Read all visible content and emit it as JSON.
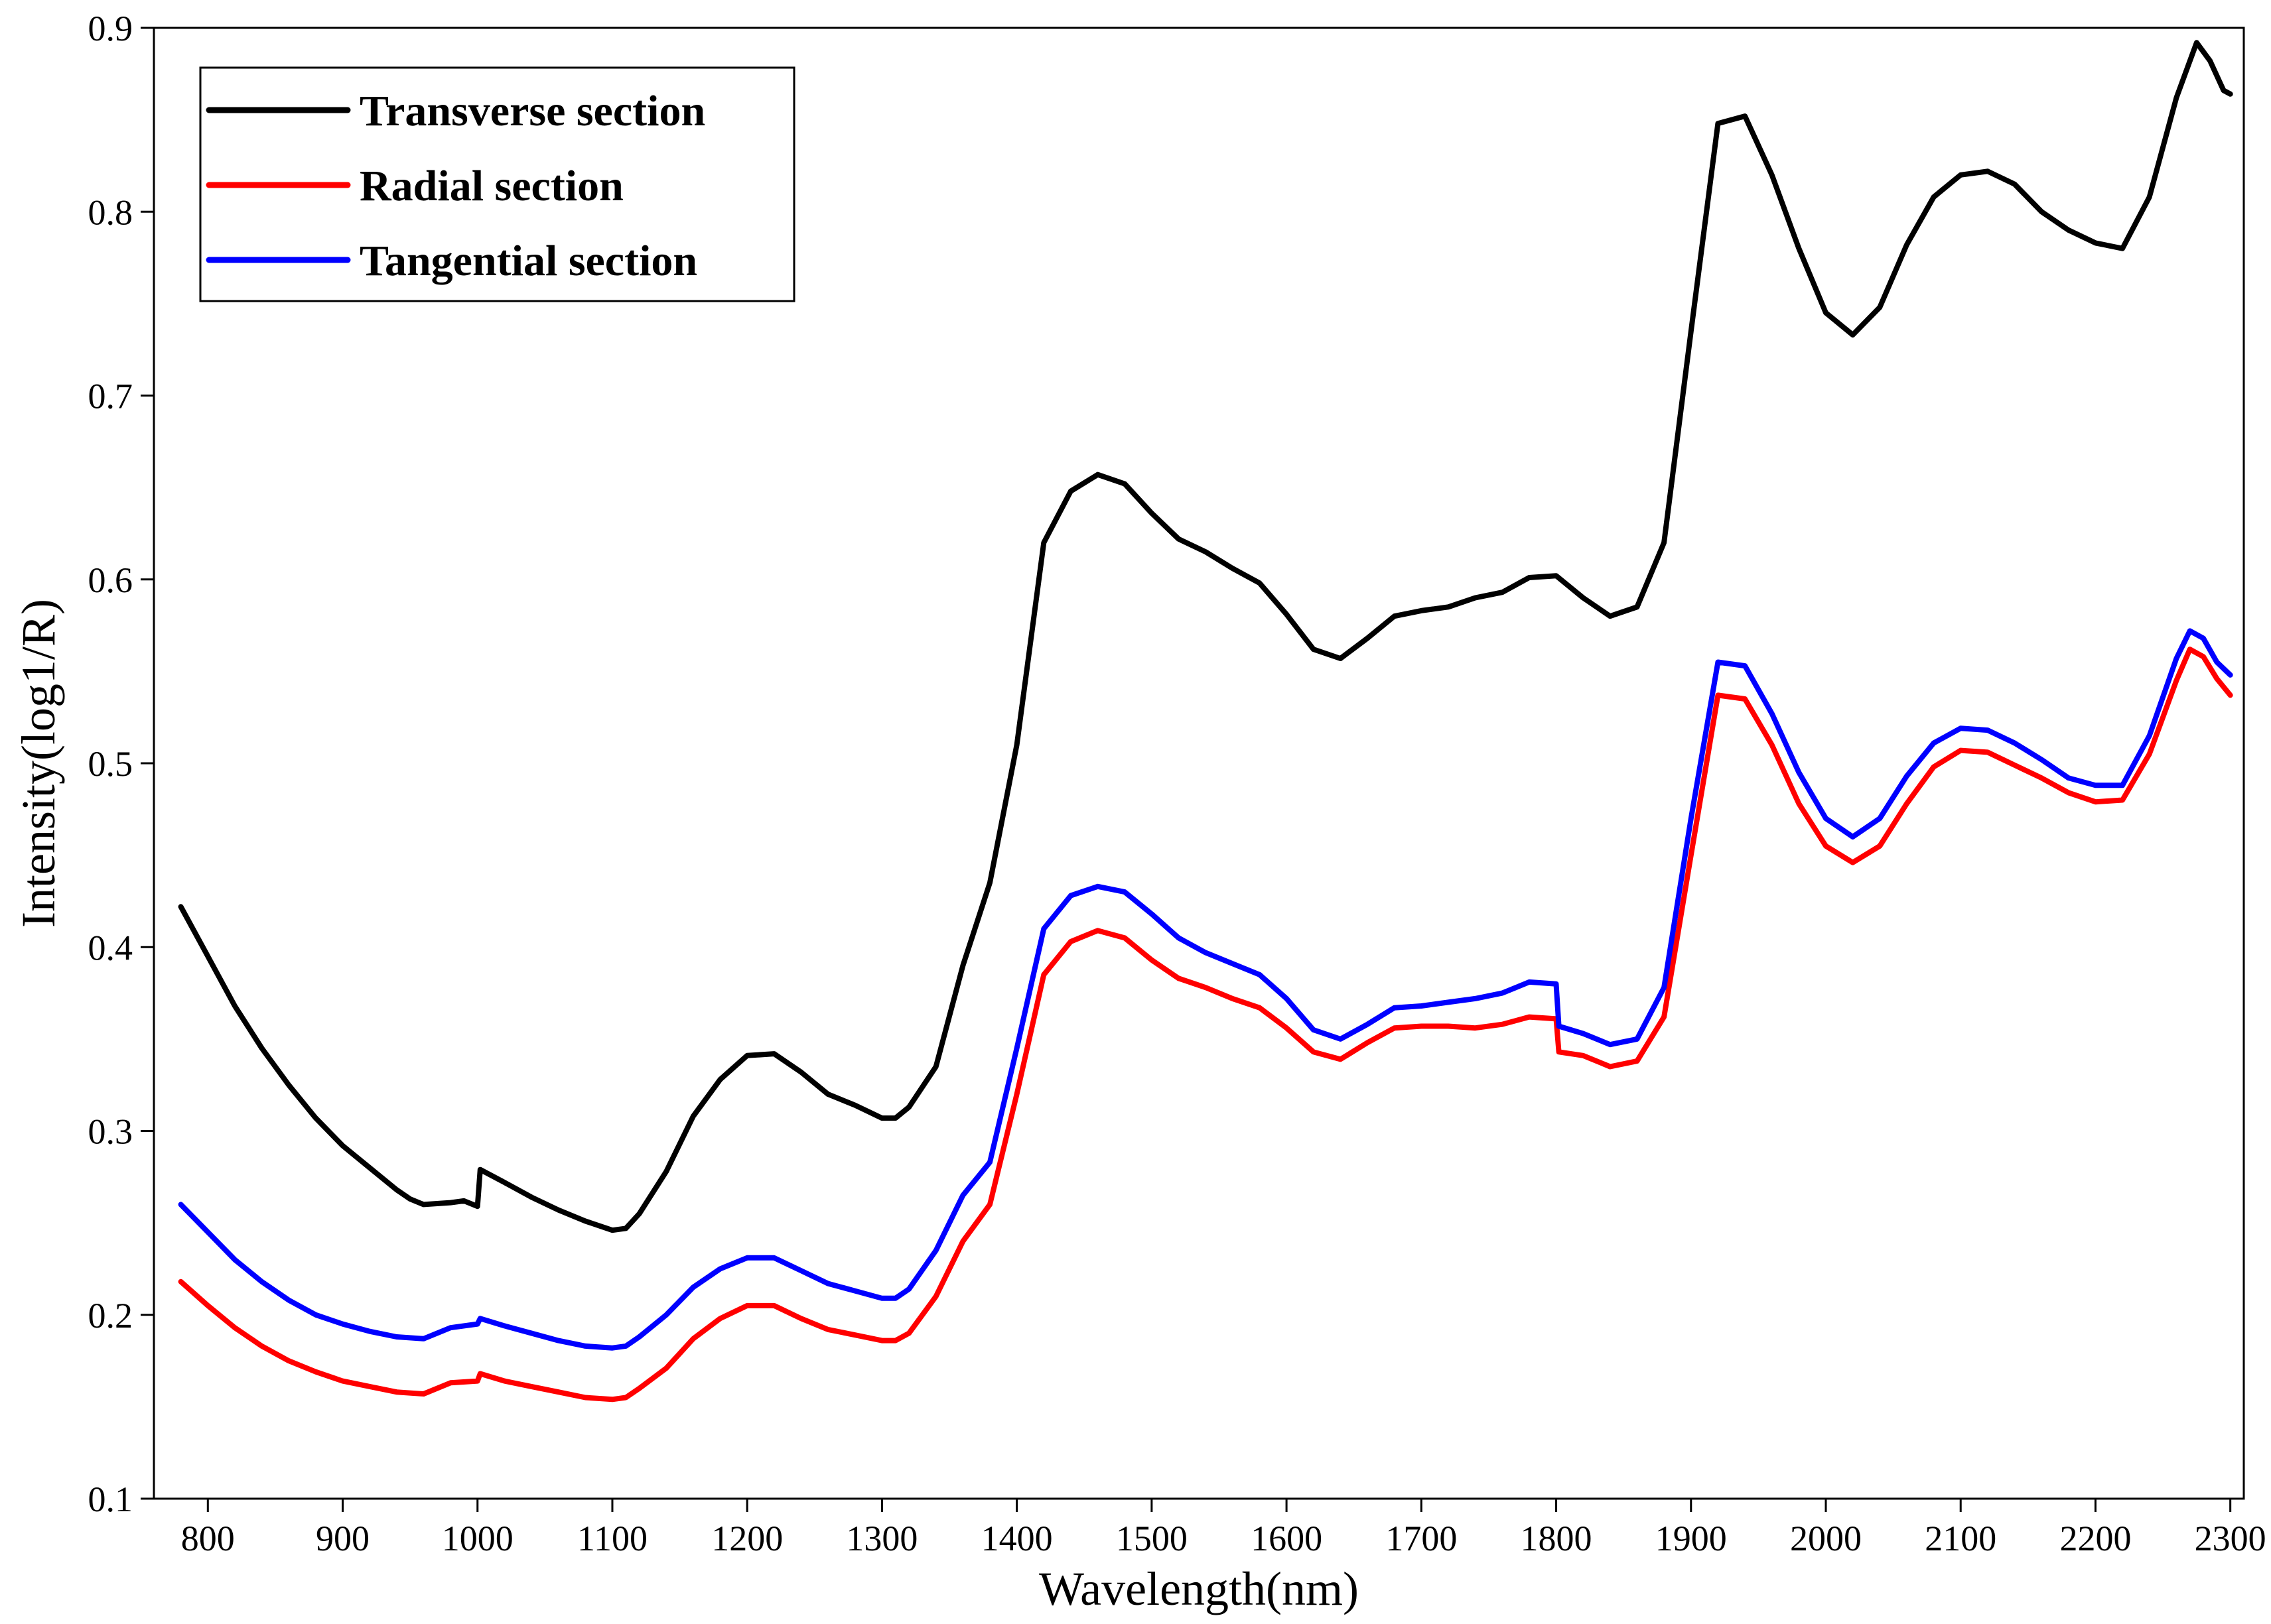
{
  "chart_data": {
    "type": "line",
    "title": "",
    "xlabel": "Wavelength(nm)",
    "ylabel": "Intensity(log1/R)",
    "xlim": [
      760,
      2310
    ],
    "ylim": [
      0.1,
      0.9
    ],
    "xticks": [
      800,
      900,
      1000,
      1100,
      1200,
      1300,
      1400,
      1500,
      1600,
      1700,
      1800,
      1900,
      2000,
      2100,
      2200,
      2300
    ],
    "yticks": [
      0.1,
      0.2,
      0.3,
      0.4,
      0.5,
      0.6,
      0.7,
      0.8,
      0.9
    ],
    "xtick_labels": [
      "800",
      "900",
      "1000",
      "1100",
      "1200",
      "1300",
      "1400",
      "1500",
      "1600",
      "1700",
      "1800",
      "1900",
      "2000",
      "2100",
      "2200",
      "2300"
    ],
    "ytick_labels": [
      "0.1",
      "0.2",
      "0.3",
      "0.4",
      "0.5",
      "0.6",
      "0.7",
      "0.8",
      "0.9"
    ],
    "legend_position": "top-left",
    "grid": false,
    "series": [
      {
        "name": "Transverse section",
        "color": "#000000",
        "points": [
          [
            780,
            0.422
          ],
          [
            800,
            0.395
          ],
          [
            820,
            0.368
          ],
          [
            840,
            0.345
          ],
          [
            860,
            0.325
          ],
          [
            880,
            0.307
          ],
          [
            900,
            0.292
          ],
          [
            920,
            0.28
          ],
          [
            940,
            0.268
          ],
          [
            950,
            0.263
          ],
          [
            960,
            0.26
          ],
          [
            980,
            0.261
          ],
          [
            990,
            0.262
          ],
          [
            1000,
            0.259
          ],
          [
            1002,
            0.279
          ],
          [
            1020,
            0.272
          ],
          [
            1040,
            0.264
          ],
          [
            1060,
            0.257
          ],
          [
            1080,
            0.251
          ],
          [
            1100,
            0.246
          ],
          [
            1110,
            0.247
          ],
          [
            1120,
            0.255
          ],
          [
            1140,
            0.278
          ],
          [
            1160,
            0.308
          ],
          [
            1180,
            0.328
          ],
          [
            1200,
            0.341
          ],
          [
            1220,
            0.342
          ],
          [
            1240,
            0.332
          ],
          [
            1260,
            0.32
          ],
          [
            1280,
            0.314
          ],
          [
            1300,
            0.307
          ],
          [
            1310,
            0.307
          ],
          [
            1320,
            0.313
          ],
          [
            1340,
            0.335
          ],
          [
            1360,
            0.39
          ],
          [
            1380,
            0.435
          ],
          [
            1400,
            0.51
          ],
          [
            1420,
            0.62
          ],
          [
            1440,
            0.648
          ],
          [
            1460,
            0.657
          ],
          [
            1480,
            0.652
          ],
          [
            1500,
            0.636
          ],
          [
            1520,
            0.622
          ],
          [
            1540,
            0.615
          ],
          [
            1560,
            0.606
          ],
          [
            1580,
            0.598
          ],
          [
            1600,
            0.581
          ],
          [
            1620,
            0.562
          ],
          [
            1640,
            0.557
          ],
          [
            1660,
            0.568
          ],
          [
            1680,
            0.58
          ],
          [
            1700,
            0.583
          ],
          [
            1720,
            0.585
          ],
          [
            1740,
            0.59
          ],
          [
            1760,
            0.593
          ],
          [
            1780,
            0.601
          ],
          [
            1800,
            0.602
          ],
          [
            1820,
            0.59
          ],
          [
            1840,
            0.58
          ],
          [
            1860,
            0.585
          ],
          [
            1880,
            0.62
          ],
          [
            1900,
            0.735
          ],
          [
            1920,
            0.848
          ],
          [
            1940,
            0.852
          ],
          [
            1960,
            0.82
          ],
          [
            1980,
            0.78
          ],
          [
            2000,
            0.745
          ],
          [
            2020,
            0.733
          ],
          [
            2040,
            0.748
          ],
          [
            2060,
            0.782
          ],
          [
            2080,
            0.808
          ],
          [
            2100,
            0.82
          ],
          [
            2120,
            0.822
          ],
          [
            2140,
            0.815
          ],
          [
            2160,
            0.8
          ],
          [
            2180,
            0.79
          ],
          [
            2200,
            0.783
          ],
          [
            2220,
            0.78
          ],
          [
            2240,
            0.808
          ],
          [
            2260,
            0.862
          ],
          [
            2275,
            0.892
          ],
          [
            2285,
            0.882
          ],
          [
            2295,
            0.866
          ],
          [
            2300,
            0.864
          ]
        ]
      },
      {
        "name": "Radial section",
        "color": "#ff0000",
        "points": [
          [
            780,
            0.218
          ],
          [
            800,
            0.205
          ],
          [
            820,
            0.193
          ],
          [
            840,
            0.183
          ],
          [
            860,
            0.175
          ],
          [
            880,
            0.169
          ],
          [
            900,
            0.164
          ],
          [
            920,
            0.161
          ],
          [
            940,
            0.158
          ],
          [
            960,
            0.157
          ],
          [
            980,
            0.163
          ],
          [
            1000,
            0.164
          ],
          [
            1002,
            0.168
          ],
          [
            1020,
            0.164
          ],
          [
            1040,
            0.161
          ],
          [
            1060,
            0.158
          ],
          [
            1080,
            0.155
          ],
          [
            1100,
            0.154
          ],
          [
            1110,
            0.155
          ],
          [
            1120,
            0.16
          ],
          [
            1140,
            0.171
          ],
          [
            1160,
            0.187
          ],
          [
            1180,
            0.198
          ],
          [
            1200,
            0.205
          ],
          [
            1220,
            0.205
          ],
          [
            1240,
            0.198
          ],
          [
            1260,
            0.192
          ],
          [
            1280,
            0.189
          ],
          [
            1300,
            0.186
          ],
          [
            1310,
            0.186
          ],
          [
            1320,
            0.19
          ],
          [
            1340,
            0.21
          ],
          [
            1360,
            0.24
          ],
          [
            1380,
            0.26
          ],
          [
            1400,
            0.32
          ],
          [
            1420,
            0.385
          ],
          [
            1440,
            0.403
          ],
          [
            1460,
            0.409
          ],
          [
            1480,
            0.405
          ],
          [
            1500,
            0.393
          ],
          [
            1520,
            0.383
          ],
          [
            1540,
            0.378
          ],
          [
            1560,
            0.372
          ],
          [
            1580,
            0.367
          ],
          [
            1600,
            0.356
          ],
          [
            1620,
            0.343
          ],
          [
            1640,
            0.339
          ],
          [
            1660,
            0.348
          ],
          [
            1680,
            0.356
          ],
          [
            1700,
            0.357
          ],
          [
            1720,
            0.357
          ],
          [
            1740,
            0.356
          ],
          [
            1760,
            0.358
          ],
          [
            1780,
            0.362
          ],
          [
            1800,
            0.361
          ],
          [
            1802,
            0.343
          ],
          [
            1820,
            0.341
          ],
          [
            1840,
            0.335
          ],
          [
            1860,
            0.338
          ],
          [
            1880,
            0.362
          ],
          [
            1900,
            0.45
          ],
          [
            1920,
            0.537
          ],
          [
            1940,
            0.535
          ],
          [
            1960,
            0.51
          ],
          [
            1980,
            0.478
          ],
          [
            2000,
            0.455
          ],
          [
            2020,
            0.446
          ],
          [
            2040,
            0.455
          ],
          [
            2060,
            0.478
          ],
          [
            2080,
            0.498
          ],
          [
            2100,
            0.507
          ],
          [
            2120,
            0.506
          ],
          [
            2140,
            0.499
          ],
          [
            2160,
            0.492
          ],
          [
            2180,
            0.484
          ],
          [
            2200,
            0.479
          ],
          [
            2220,
            0.48
          ],
          [
            2240,
            0.505
          ],
          [
            2260,
            0.545
          ],
          [
            2270,
            0.562
          ],
          [
            2280,
            0.558
          ],
          [
            2290,
            0.546
          ],
          [
            2300,
            0.537
          ]
        ]
      },
      {
        "name": "Tangential section",
        "color": "#0000ff",
        "points": [
          [
            780,
            0.26
          ],
          [
            800,
            0.245
          ],
          [
            820,
            0.23
          ],
          [
            840,
            0.218
          ],
          [
            860,
            0.208
          ],
          [
            880,
            0.2
          ],
          [
            900,
            0.195
          ],
          [
            920,
            0.191
          ],
          [
            940,
            0.188
          ],
          [
            960,
            0.187
          ],
          [
            980,
            0.193
          ],
          [
            1000,
            0.195
          ],
          [
            1002,
            0.198
          ],
          [
            1020,
            0.194
          ],
          [
            1040,
            0.19
          ],
          [
            1060,
            0.186
          ],
          [
            1080,
            0.183
          ],
          [
            1100,
            0.182
          ],
          [
            1110,
            0.183
          ],
          [
            1120,
            0.188
          ],
          [
            1140,
            0.2
          ],
          [
            1160,
            0.215
          ],
          [
            1180,
            0.225
          ],
          [
            1200,
            0.231
          ],
          [
            1220,
            0.231
          ],
          [
            1240,
            0.224
          ],
          [
            1260,
            0.217
          ],
          [
            1280,
            0.213
          ],
          [
            1300,
            0.209
          ],
          [
            1310,
            0.209
          ],
          [
            1320,
            0.214
          ],
          [
            1340,
            0.235
          ],
          [
            1360,
            0.265
          ],
          [
            1380,
            0.283
          ],
          [
            1400,
            0.345
          ],
          [
            1420,
            0.41
          ],
          [
            1440,
            0.428
          ],
          [
            1460,
            0.433
          ],
          [
            1480,
            0.43
          ],
          [
            1500,
            0.418
          ],
          [
            1520,
            0.405
          ],
          [
            1540,
            0.397
          ],
          [
            1560,
            0.391
          ],
          [
            1580,
            0.385
          ],
          [
            1600,
            0.372
          ],
          [
            1620,
            0.355
          ],
          [
            1640,
            0.35
          ],
          [
            1660,
            0.358
          ],
          [
            1680,
            0.367
          ],
          [
            1700,
            0.368
          ],
          [
            1720,
            0.37
          ],
          [
            1740,
            0.372
          ],
          [
            1760,
            0.375
          ],
          [
            1780,
            0.381
          ],
          [
            1800,
            0.38
          ],
          [
            1802,
            0.357
          ],
          [
            1820,
            0.353
          ],
          [
            1840,
            0.347
          ],
          [
            1860,
            0.35
          ],
          [
            1880,
            0.378
          ],
          [
            1900,
            0.47
          ],
          [
            1920,
            0.555
          ],
          [
            1940,
            0.553
          ],
          [
            1960,
            0.527
          ],
          [
            1980,
            0.495
          ],
          [
            2000,
            0.47
          ],
          [
            2020,
            0.46
          ],
          [
            2040,
            0.47
          ],
          [
            2060,
            0.493
          ],
          [
            2080,
            0.511
          ],
          [
            2100,
            0.519
          ],
          [
            2120,
            0.518
          ],
          [
            2140,
            0.511
          ],
          [
            2160,
            0.502
          ],
          [
            2180,
            0.492
          ],
          [
            2200,
            0.488
          ],
          [
            2220,
            0.488
          ],
          [
            2240,
            0.515
          ],
          [
            2260,
            0.557
          ],
          [
            2270,
            0.572
          ],
          [
            2280,
            0.568
          ],
          [
            2290,
            0.555
          ],
          [
            2300,
            0.548
          ]
        ]
      }
    ]
  }
}
